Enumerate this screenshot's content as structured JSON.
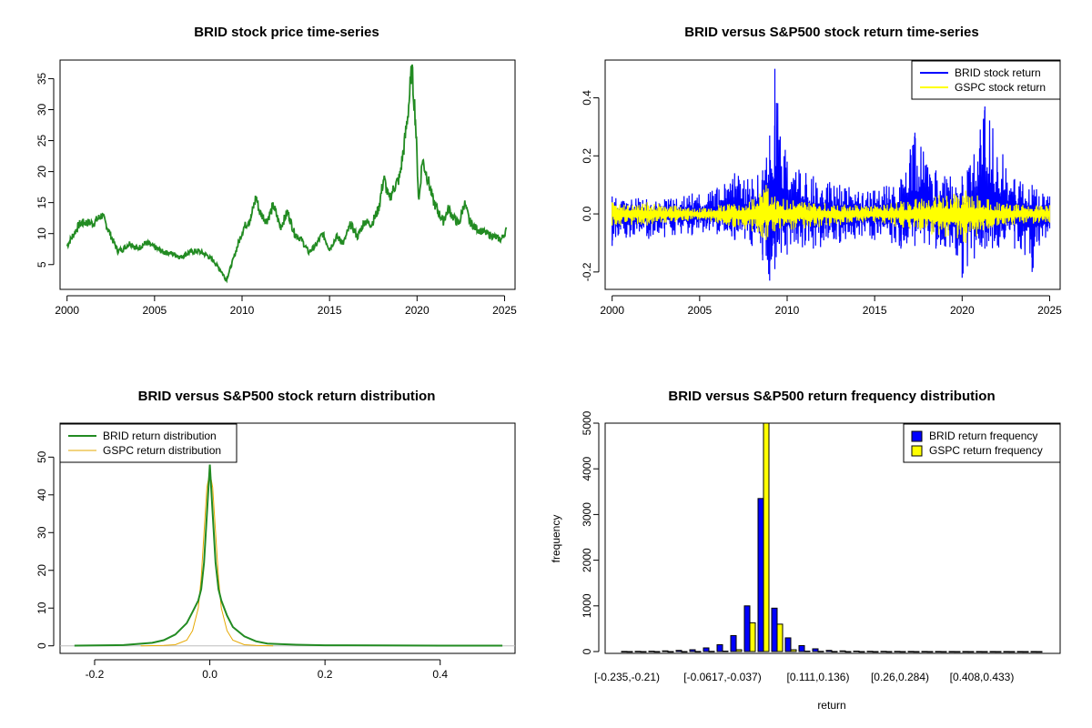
{
  "chart_data": [
    {
      "id": "price",
      "type": "line",
      "title": "BRID stock price time-series",
      "xlabel": "",
      "ylabel": "",
      "xlim": [
        1999.6,
        2025.6
      ],
      "ylim": [
        1.0,
        38.0
      ],
      "xticks": [
        "2000",
        "2005",
        "2010",
        "2015",
        "2020",
        "2025"
      ],
      "yticks": [
        "5",
        "10",
        "15",
        "20",
        "25",
        "30",
        "35"
      ],
      "series": [
        {
          "name": "BRID stock price",
          "color": "#228B22",
          "x": [
            2000.0,
            2000.3,
            2000.7,
            2001.0,
            2001.5,
            2002.0,
            2002.3,
            2002.6,
            2002.9,
            2003.2,
            2003.6,
            2004.0,
            2004.5,
            2005.0,
            2005.5,
            2006.0,
            2006.5,
            2007.0,
            2007.5,
            2008.0,
            2008.4,
            2008.8,
            2009.1,
            2009.4,
            2009.8,
            2010.1,
            2010.5,
            2010.8,
            2011.0,
            2011.4,
            2011.8,
            2012.2,
            2012.6,
            2013.0,
            2013.4,
            2013.8,
            2014.2,
            2014.6,
            2015.0,
            2015.4,
            2015.8,
            2016.2,
            2016.6,
            2017.0,
            2017.4,
            2017.8,
            2018.1,
            2018.4,
            2018.7,
            2019.0,
            2019.3,
            2019.5,
            2019.7,
            2019.9,
            2020.1,
            2020.3,
            2020.6,
            2020.9,
            2021.2,
            2021.5,
            2021.8,
            2022.1,
            2022.4,
            2022.7,
            2023.0,
            2023.3,
            2023.6,
            2024.0,
            2024.4,
            2024.8,
            2025.1
          ],
          "values": [
            8.0,
            9.5,
            11.5,
            11.8,
            11.7,
            13.0,
            11.0,
            9.0,
            7.2,
            7.5,
            8.5,
            7.5,
            8.5,
            7.8,
            7.0,
            6.8,
            6.2,
            7.0,
            7.2,
            6.5,
            5.5,
            4.0,
            2.5,
            5.0,
            8.5,
            11.0,
            12.5,
            16.0,
            13.5,
            12.0,
            14.5,
            11.0,
            13.5,
            10.0,
            9.0,
            7.0,
            8.0,
            10.0,
            7.5,
            9.5,
            8.5,
            11.5,
            9.5,
            12.0,
            11.5,
            14.0,
            19.0,
            15.5,
            17.5,
            19.0,
            25.0,
            30.0,
            36.5,
            29.0,
            15.0,
            22.0,
            19.0,
            15.5,
            13.5,
            12.0,
            14.0,
            12.5,
            11.5,
            15.0,
            12.0,
            11.0,
            10.5,
            10.0,
            9.5,
            9.0,
            10.5
          ]
        }
      ]
    },
    {
      "id": "returns",
      "type": "line",
      "title": "BRID versus S&P500 stock return time-series",
      "xlabel": "",
      "ylabel": "",
      "xlim": [
        1999.6,
        2025.6
      ],
      "ylim": [
        -0.26,
        0.53
      ],
      "xticks": [
        "2000",
        "2005",
        "2010",
        "2015",
        "2020",
        "2025"
      ],
      "yticks": [
        "-0.2",
        "0.0",
        "0.2",
        "0.4"
      ],
      "legend": [
        "BRID stock return",
        "GSPC stock return"
      ],
      "legend_position": "top-right",
      "series": [
        {
          "name": "BRID stock return",
          "color": "#0000FF",
          "x": [
            2000.0,
            2003.0,
            2006.0,
            2007.0,
            2008.0,
            2008.6,
            2009.0,
            2009.3,
            2010.0,
            2011.5,
            2013.0,
            2015.0,
            2016.5,
            2017.3,
            2018.5,
            2019.0,
            2020.0,
            2020.3,
            2021.3,
            2023.0,
            2024.0,
            2025.0
          ],
          "highs": [
            0.06,
            0.05,
            0.09,
            0.14,
            0.12,
            0.15,
            0.27,
            0.5,
            0.18,
            0.13,
            0.1,
            0.08,
            0.12,
            0.28,
            0.15,
            0.13,
            0.13,
            0.15,
            0.37,
            0.12,
            0.1,
            0.06
          ],
          "lows": [
            -0.11,
            -0.08,
            -0.07,
            -0.09,
            -0.11,
            -0.16,
            -0.23,
            -0.19,
            -0.14,
            -0.12,
            -0.1,
            -0.09,
            -0.12,
            -0.11,
            -0.12,
            -0.11,
            -0.22,
            -0.18,
            -0.12,
            -0.12,
            -0.2,
            -0.05
          ]
        },
        {
          "name": "GSPC stock return",
          "color": "#FFFF00",
          "x": [
            2000.0,
            2002.0,
            2005.0,
            2008.0,
            2008.8,
            2009.3,
            2011.0,
            2015.0,
            2020.2,
            2022.0,
            2025.0
          ],
          "highs": [
            0.04,
            0.04,
            0.02,
            0.05,
            0.1,
            0.06,
            0.04,
            0.03,
            0.08,
            0.04,
            0.03
          ],
          "lows": [
            -0.04,
            -0.04,
            -0.02,
            -0.06,
            -0.09,
            -0.06,
            -0.05,
            -0.03,
            -0.1,
            -0.04,
            -0.03
          ]
        }
      ]
    },
    {
      "id": "density",
      "type": "line",
      "title": "BRID versus S&P500 stock return distribution",
      "xlabel": "",
      "ylabel": "",
      "xlim": [
        -0.26,
        0.53
      ],
      "ylim": [
        -2,
        59
      ],
      "xticks": [
        "-0.2",
        "0.0",
        "0.2",
        "0.4"
      ],
      "yticks": [
        "0",
        "10",
        "20",
        "30",
        "40",
        "50"
      ],
      "legend": [
        "BRID return distribution",
        "GSPC return distribution"
      ],
      "legend_position": "top-left",
      "series": [
        {
          "name": "BRID return distribution",
          "color": "#228B22",
          "x": [
            -0.235,
            -0.2,
            -0.15,
            -0.1,
            -0.08,
            -0.06,
            -0.04,
            -0.03,
            -0.02,
            -0.015,
            -0.01,
            -0.005,
            0.0,
            0.005,
            0.01,
            0.015,
            0.02,
            0.03,
            0.04,
            0.06,
            0.08,
            0.1,
            0.15,
            0.2,
            0.3,
            0.4,
            0.508
          ],
          "values": [
            0.05,
            0.1,
            0.2,
            0.8,
            1.5,
            3.0,
            6.0,
            9.0,
            12.0,
            15.0,
            22.0,
            35.0,
            48.0,
            35.0,
            22.0,
            15.0,
            12.0,
            8.0,
            5.0,
            2.5,
            1.2,
            0.6,
            0.3,
            0.15,
            0.1,
            0.05,
            0.05
          ]
        },
        {
          "name": "GSPC return distribution",
          "color": "#E6A800",
          "x": [
            -0.12,
            -0.08,
            -0.06,
            -0.04,
            -0.03,
            -0.02,
            -0.015,
            -0.01,
            -0.005,
            0.0,
            0.005,
            0.01,
            0.015,
            0.02,
            0.03,
            0.04,
            0.06,
            0.08,
            0.11
          ],
          "values": [
            0.0,
            0.1,
            0.3,
            1.5,
            4.0,
            10.0,
            18.0,
            30.0,
            42.0,
            46.0,
            42.0,
            30.0,
            18.0,
            10.0,
            4.0,
            1.5,
            0.3,
            0.1,
            0.0
          ]
        }
      ]
    },
    {
      "id": "freq",
      "type": "bar",
      "title": "BRID versus S&P500 return frequency distribution",
      "xlabel": "return",
      "ylabel": "frequency",
      "ylim": [
        0,
        5000
      ],
      "yticks": [
        "0",
        "1000",
        "2000",
        "3000",
        "4000",
        "5000"
      ],
      "xtick_labels": [
        "[-0.235,-0.21)",
        "[-0.0617,-0.037)",
        "[0.111,0.136)",
        "[0.26,0.284)",
        "[0.408,0.433)"
      ],
      "xtick_bins": [
        0,
        7,
        14,
        20,
        26
      ],
      "legend": [
        "BRID return frequency",
        "GSPC return frequency"
      ],
      "legend_position": "top-right",
      "series": [
        {
          "name": "BRID return frequency",
          "color": "#0000FF",
          "values": [
            3,
            5,
            8,
            15,
            25,
            40,
            80,
            150,
            350,
            1000,
            3350,
            950,
            300,
            130,
            60,
            25,
            15,
            10,
            6,
            5,
            4,
            3,
            2,
            2,
            1,
            1,
            1,
            1,
            1,
            1,
            1
          ]
        },
        {
          "name": "GSPC return frequency",
          "color": "#FFFF00",
          "values": [
            0,
            0,
            0,
            0,
            0,
            2,
            5,
            10,
            40,
            630,
            5050,
            600,
            40,
            10,
            5,
            2,
            0,
            0,
            0,
            0,
            0,
            0,
            0,
            0,
            0,
            0,
            0,
            0,
            0,
            0,
            0
          ]
        }
      ]
    }
  ]
}
